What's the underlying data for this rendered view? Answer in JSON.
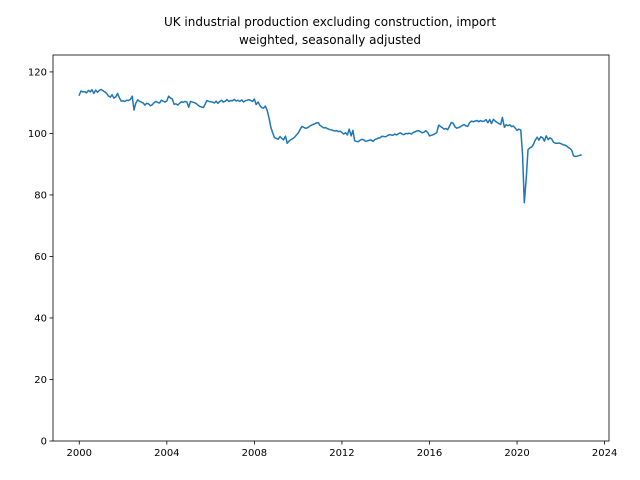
{
  "chart_data": {
    "type": "line",
    "title_lines": [
      "UK industrial production excluding construction, import",
      "weighted, seasonally adjusted"
    ],
    "xlabel": "",
    "ylabel": "",
    "xlim": [
      1998.8,
      2024.2
    ],
    "ylim": [
      0,
      125.5
    ],
    "xticks": [
      2000,
      2004,
      2008,
      2012,
      2016,
      2020,
      2024
    ],
    "yticks": [
      0,
      20,
      40,
      60,
      80,
      100,
      120
    ],
    "grid": false,
    "line_color": "#1f77b4",
    "series": [
      {
        "x": [
          2000.0,
          2000.08,
          2000.17,
          2000.25,
          2000.33,
          2000.42,
          2000.5,
          2000.58,
          2000.67,
          2000.75,
          2000.83,
          2000.92,
          2001.0,
          2001.08,
          2001.17,
          2001.25,
          2001.33,
          2001.42,
          2001.5,
          2001.58,
          2001.67,
          2001.75,
          2001.83,
          2001.92,
          2002.0,
          2002.08,
          2002.17,
          2002.25,
          2002.33,
          2002.42,
          2002.5,
          2002.58,
          2002.67,
          2002.75,
          2002.83,
          2002.92,
          2003.0,
          2003.08,
          2003.17,
          2003.25,
          2003.33,
          2003.42,
          2003.5,
          2003.58,
          2003.67,
          2003.75,
          2003.83,
          2003.92,
          2004.0,
          2004.08,
          2004.17,
          2004.25,
          2004.33,
          2004.42,
          2004.5,
          2004.58,
          2004.67,
          2004.75,
          2004.83,
          2004.92,
          2005.0,
          2005.08,
          2005.17,
          2005.25,
          2005.33,
          2005.42,
          2005.5,
          2005.58,
          2005.67,
          2005.75,
          2005.83,
          2005.92,
          2006.0,
          2006.08,
          2006.17,
          2006.25,
          2006.33,
          2006.42,
          2006.5,
          2006.58,
          2006.67,
          2006.75,
          2006.83,
          2006.92,
          2007.0,
          2007.08,
          2007.17,
          2007.25,
          2007.33,
          2007.42,
          2007.5,
          2007.58,
          2007.67,
          2007.75,
          2007.83,
          2007.92,
          2008.0,
          2008.08,
          2008.17,
          2008.25,
          2008.33,
          2008.42,
          2008.5,
          2008.58,
          2008.67,
          2008.75,
          2008.83,
          2008.92,
          2009.0,
          2009.08,
          2009.17,
          2009.25,
          2009.33,
          2009.42,
          2009.5,
          2009.58,
          2009.67,
          2009.75,
          2009.83,
          2009.92,
          2010.0,
          2010.08,
          2010.17,
          2010.25,
          2010.33,
          2010.42,
          2010.5,
          2010.58,
          2010.67,
          2010.75,
          2010.83,
          2010.92,
          2011.0,
          2011.08,
          2011.17,
          2011.25,
          2011.33,
          2011.42,
          2011.5,
          2011.58,
          2011.67,
          2011.75,
          2011.83,
          2011.92,
          2012.0,
          2012.08,
          2012.17,
          2012.25,
          2012.33,
          2012.42,
          2012.5,
          2012.58,
          2012.67,
          2012.75,
          2012.83,
          2012.92,
          2013.0,
          2013.08,
          2013.17,
          2013.25,
          2013.33,
          2013.42,
          2013.5,
          2013.58,
          2013.67,
          2013.75,
          2013.83,
          2013.92,
          2014.0,
          2014.08,
          2014.17,
          2014.25,
          2014.33,
          2014.42,
          2014.5,
          2014.58,
          2014.67,
          2014.75,
          2014.83,
          2014.92,
          2015.0,
          2015.08,
          2015.17,
          2015.25,
          2015.33,
          2015.42,
          2015.5,
          2015.58,
          2015.67,
          2015.75,
          2015.83,
          2015.92,
          2016.0,
          2016.08,
          2016.17,
          2016.25,
          2016.33,
          2016.42,
          2016.5,
          2016.58,
          2016.67,
          2016.75,
          2016.83,
          2016.92,
          2017.0,
          2017.08,
          2017.17,
          2017.25,
          2017.33,
          2017.42,
          2017.5,
          2017.58,
          2017.67,
          2017.75,
          2017.83,
          2017.92,
          2018.0,
          2018.08,
          2018.17,
          2018.25,
          2018.33,
          2018.42,
          2018.5,
          2018.58,
          2018.67,
          2018.75,
          2018.83,
          2018.92,
          2019.0,
          2019.08,
          2019.17,
          2019.25,
          2019.33,
          2019.42,
          2019.5,
          2019.58,
          2019.67,
          2019.75,
          2019.83,
          2019.92,
          2020.0,
          2020.08,
          2020.17,
          2020.25,
          2020.33,
          2020.42,
          2020.5,
          2020.58,
          2020.67,
          2020.75,
          2020.83,
          2020.92,
          2021.0,
          2021.08,
          2021.17,
          2021.25,
          2021.33,
          2021.42,
          2021.5,
          2021.58,
          2021.67,
          2021.75,
          2021.83,
          2021.92,
          2022.0,
          2022.08,
          2022.17,
          2022.25,
          2022.33,
          2022.42,
          2022.5,
          2022.58,
          2022.67,
          2022.75,
          2022.83,
          2022.92
        ],
        "y": [
          112.5,
          113.8,
          113.5,
          113.6,
          113.2,
          114.0,
          113.5,
          114.2,
          113.0,
          114.1,
          113.4,
          114.0,
          114.3,
          113.9,
          113.5,
          113.0,
          112.2,
          111.8,
          112.6,
          111.5,
          111.9,
          113.0,
          111.6,
          110.5,
          110.6,
          110.4,
          110.8,
          110.7,
          111.0,
          112.1,
          107.6,
          109.8,
          110.9,
          110.5,
          110.2,
          109.9,
          109.2,
          109.8,
          109.6,
          109.0,
          109.3,
          110.0,
          110.4,
          110.1,
          109.9,
          110.8,
          110.5,
          110.2,
          110.6,
          112.1,
          111.5,
          111.2,
          109.5,
          109.6,
          109.2,
          109.8,
          110.3,
          110.1,
          110.4,
          110.2,
          108.5,
          110.4,
          110.2,
          110.0,
          109.8,
          109.2,
          108.8,
          108.6,
          108.4,
          109.5,
          110.7,
          110.4,
          110.3,
          110.2,
          109.9,
          110.5,
          109.8,
          110.4,
          110.8,
          110.2,
          110.5,
          111.0,
          110.4,
          110.7,
          110.6,
          111.1,
          110.5,
          110.8,
          110.4,
          110.9,
          110.2,
          110.6,
          110.8,
          111.0,
          110.7,
          110.4,
          111.2,
          109.4,
          110.2,
          109.1,
          108.4,
          108.2,
          108.9,
          107.6,
          105.0,
          102.1,
          100.3,
          98.6,
          98.4,
          98.1,
          99.0,
          98.4,
          97.9,
          99.1,
          96.8,
          97.5,
          98.0,
          98.3,
          98.7,
          99.5,
          100.1,
          101.2,
          102.3,
          102.0,
          101.7,
          101.8,
          102.2,
          102.6,
          102.9,
          103.1,
          103.4,
          103.5,
          102.6,
          102.2,
          101.8,
          101.9,
          101.6,
          101.3,
          101.2,
          101.0,
          100.8,
          100.9,
          100.6,
          100.7,
          100.3,
          99.8,
          100.2,
          99.5,
          101.4,
          99.2,
          101.0,
          97.6,
          97.4,
          97.3,
          97.8,
          98.1,
          97.9,
          97.4,
          97.6,
          97.8,
          97.9,
          97.4,
          98.0,
          98.2,
          98.5,
          98.6,
          99.1,
          99.0,
          98.9,
          99.3,
          99.6,
          99.5,
          99.4,
          99.8,
          99.5,
          99.9,
          100.2,
          99.8,
          99.6,
          100.0,
          99.9,
          100.1,
          99.8,
          100.3,
          100.5,
          100.8,
          100.9,
          100.6,
          100.2,
          100.4,
          100.9,
          100.3,
          99.2,
          99.4,
          99.6,
          99.9,
          100.3,
          102.7,
          102.3,
          101.9,
          101.4,
          101.6,
          101.2,
          102.5,
          103.6,
          103.3,
          102.1,
          101.7,
          101.9,
          102.2,
          102.6,
          102.9,
          102.4,
          102.3,
          103.5,
          104.0,
          103.8,
          104.0,
          104.2,
          103.8,
          104.2,
          103.9,
          104.0,
          104.5,
          103.5,
          104.5,
          103.2,
          104.6,
          104.0,
          103.6,
          103.2,
          102.9,
          105.2,
          102.0,
          102.8,
          102.5,
          102.8,
          102.2,
          102.4,
          101.7,
          101.0,
          101.4,
          101.1,
          93.2,
          77.5,
          85.5,
          94.7,
          95.3,
          95.6,
          96.5,
          97.8,
          98.8,
          97.8,
          98.9,
          98.6,
          97.5,
          99.2,
          98.0,
          98.6,
          98.2,
          97.1,
          96.8,
          96.8,
          96.9,
          96.7,
          96.4,
          96.2,
          96.0,
          95.5,
          95.1,
          94.5,
          92.7,
          92.5,
          92.6,
          92.8,
          93.0
        ]
      }
    ]
  }
}
